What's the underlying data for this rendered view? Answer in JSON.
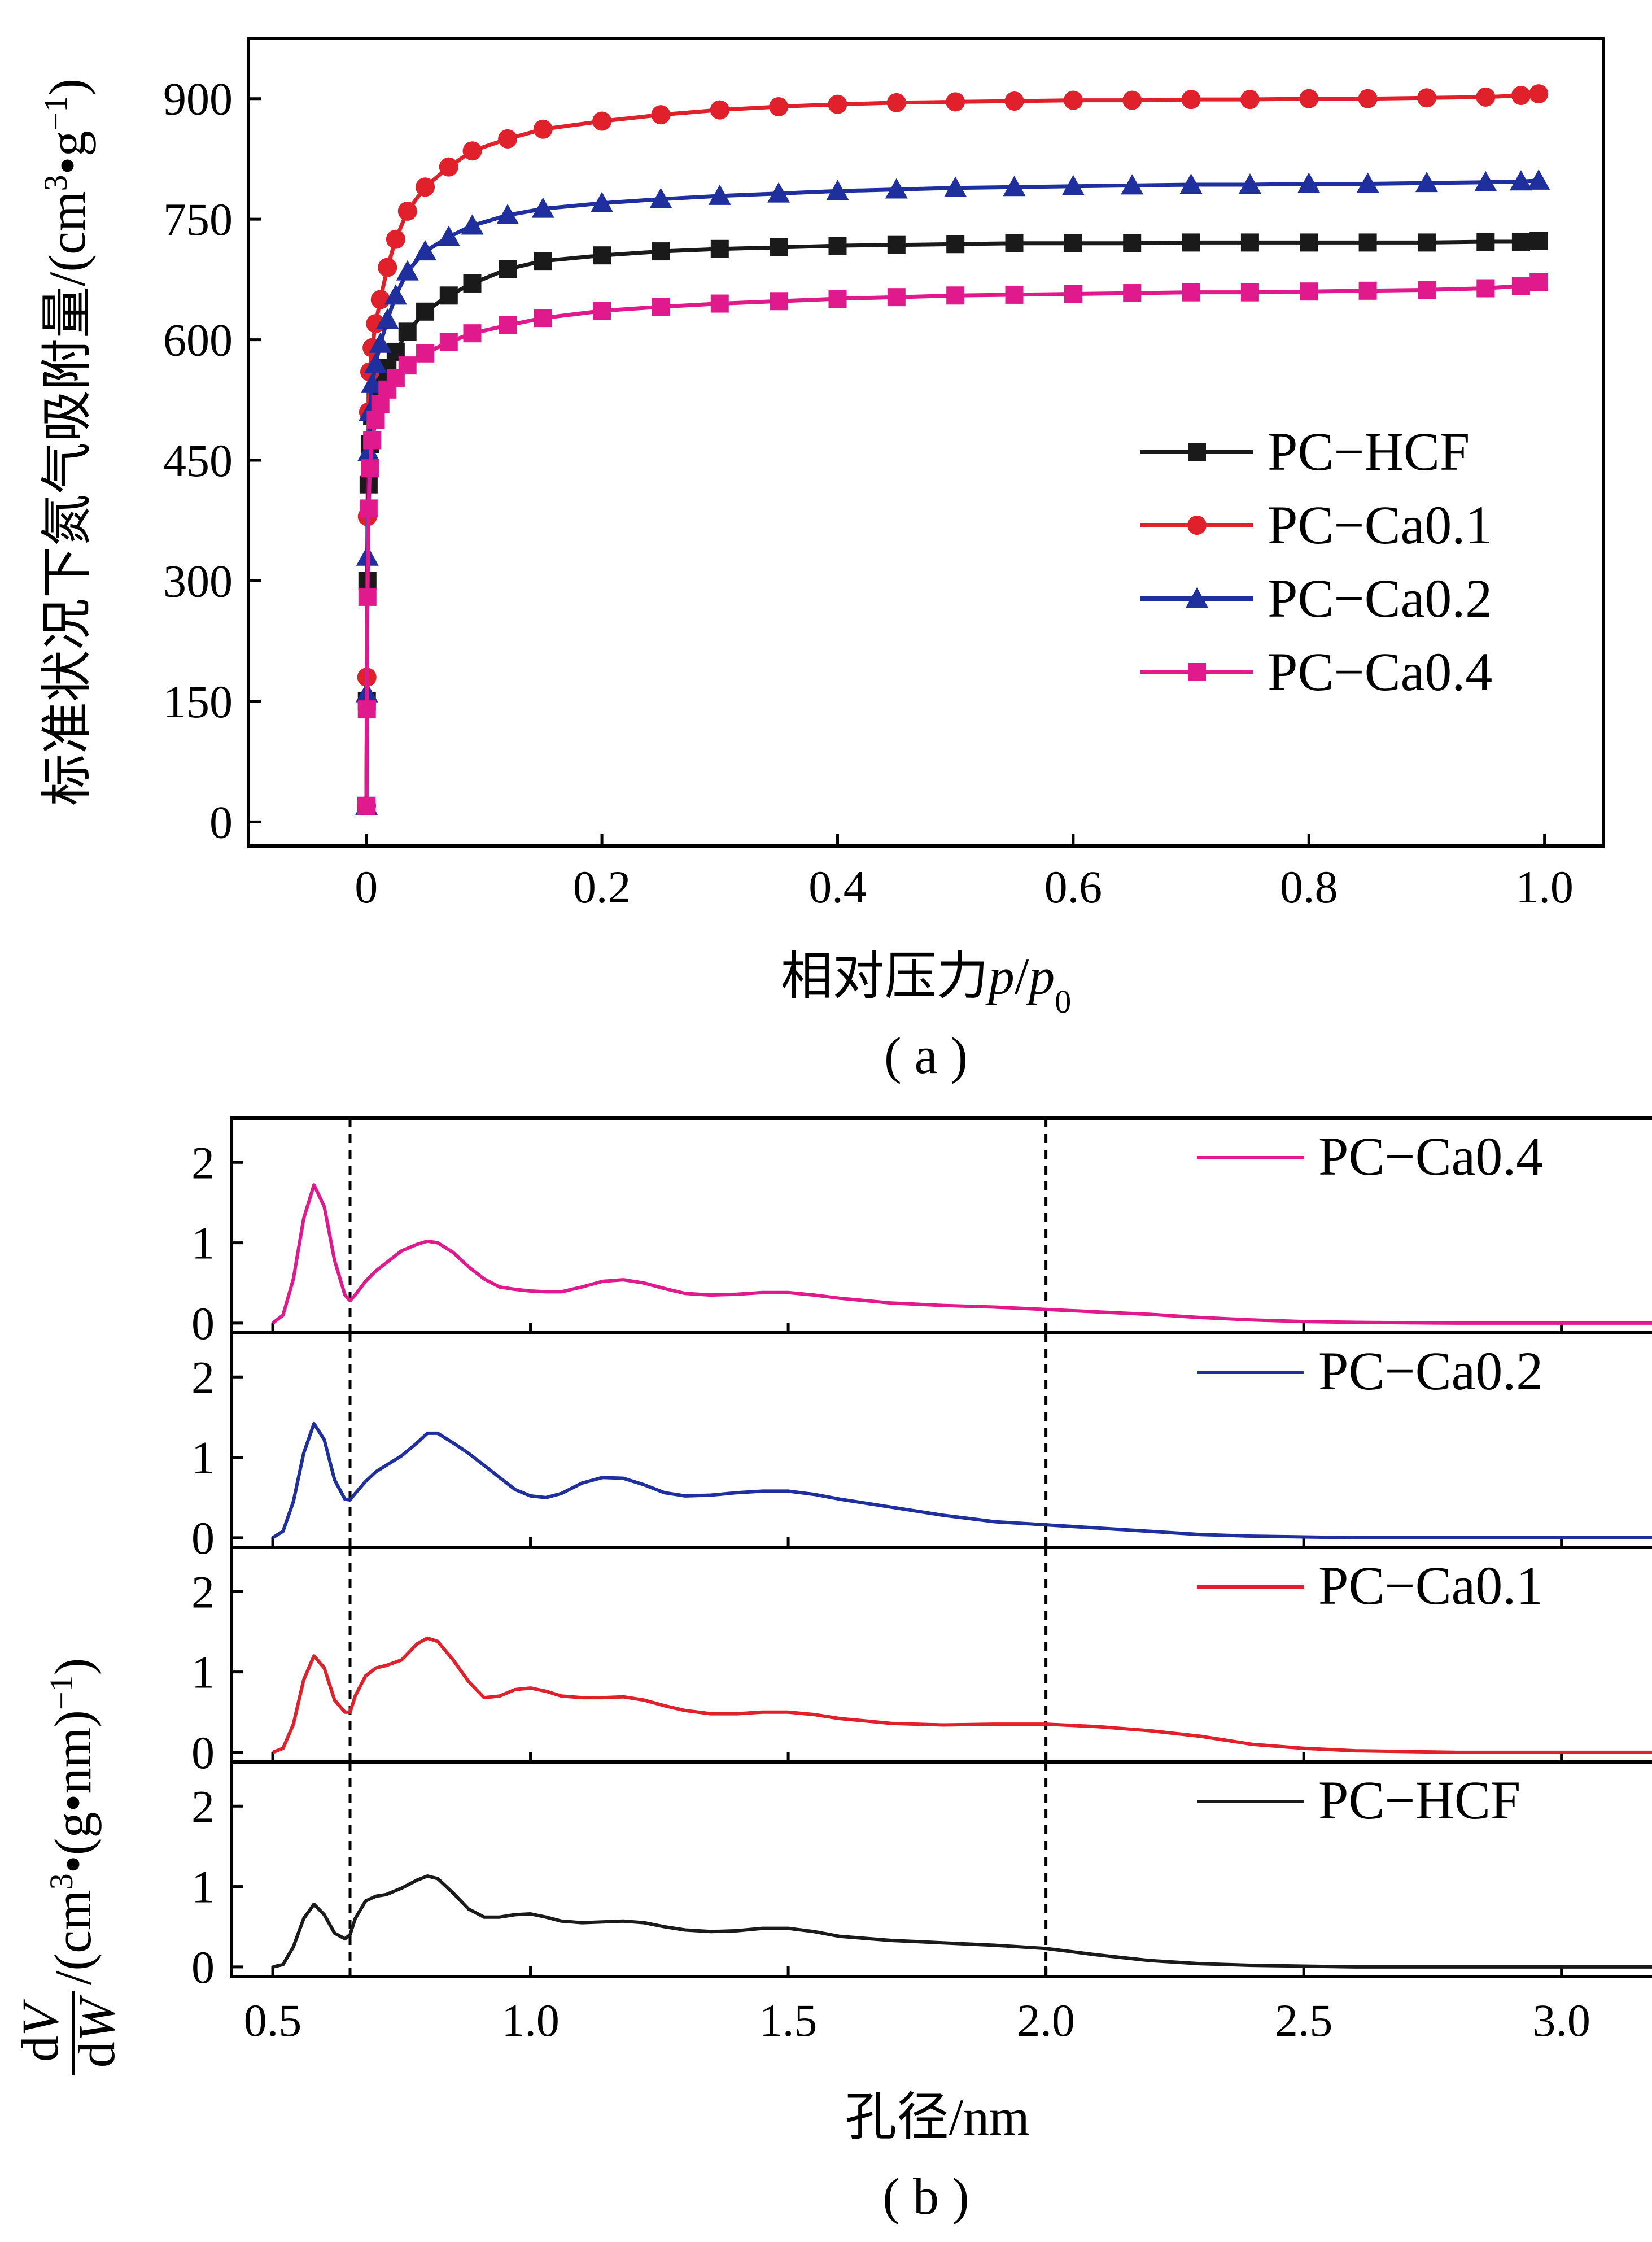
{
  "figure": {
    "caption_a": "( a )",
    "caption_b": "( b )"
  },
  "chart_data": [
    {
      "id": "a",
      "type": "line",
      "xlabel_text": "相对压力",
      "xlabel_p": "p",
      "xlabel_slash": "/",
      "xlabel_p0": "p",
      "xlabel_sub": "0",
      "ylabel_text": "标准状况下氮气吸附量/(cm",
      "ylabel_sup1": "3",
      "ylabel_mid": "•g",
      "ylabel_sup2": "−1",
      "ylabel_end": ")",
      "xlim": [
        -0.1,
        1.05
      ],
      "ylim": [
        -30,
        975
      ],
      "xticks": [
        0,
        0.2,
        0.4,
        0.6,
        0.8,
        1.0
      ],
      "xtick_labels": [
        "0",
        "0.2",
        "0.4",
        "0.6",
        "0.8",
        "1.0"
      ],
      "yticks": [
        0,
        150,
        300,
        450,
        600,
        750,
        900
      ],
      "ytick_labels": [
        "0",
        "150",
        "300",
        "450",
        "600",
        "750",
        "900"
      ],
      "legend_position": "center-right",
      "x": [
        0.0002,
        0.0005,
        0.001,
        0.002,
        0.003,
        0.005,
        0.008,
        0.012,
        0.018,
        0.025,
        0.035,
        0.05,
        0.07,
        0.09,
        0.12,
        0.15,
        0.2,
        0.25,
        0.3,
        0.35,
        0.4,
        0.45,
        0.5,
        0.55,
        0.6,
        0.65,
        0.7,
        0.75,
        0.8,
        0.85,
        0.9,
        0.95,
        0.98,
        0.995
      ],
      "series": [
        {
          "name": "PC−HCF",
          "color": "#1a1a1a",
          "marker": "square",
          "values": [
            20,
            150,
            300,
            420,
            470,
            505,
            525,
            545,
            565,
            585,
            610,
            635,
            655,
            670,
            688,
            698,
            705,
            710,
            713,
            715,
            717,
            718,
            719,
            720,
            720,
            720,
            721,
            721,
            721,
            721,
            721,
            722,
            722,
            723
          ]
        },
        {
          "name": "PC−Ca0.1",
          "color": "#e0202a",
          "marker": "circle",
          "values": [
            20,
            180,
            380,
            510,
            560,
            590,
            620,
            650,
            690,
            725,
            760,
            790,
            815,
            835,
            850,
            862,
            872,
            880,
            886,
            890,
            893,
            895,
            896,
            897,
            898,
            898,
            899,
            899,
            900,
            900,
            901,
            902,
            904,
            906
          ]
        },
        {
          "name": "PC−Ca0.2",
          "color": "#1f2f9e",
          "marker": "triangle",
          "values": [
            20,
            160,
            330,
            460,
            510,
            545,
            570,
            595,
            625,
            655,
            685,
            710,
            728,
            742,
            755,
            763,
            770,
            775,
            779,
            782,
            785,
            787,
            789,
            790,
            791,
            792,
            793,
            793,
            794,
            794,
            795,
            796,
            797,
            798
          ]
        },
        {
          "name": "PC−Ca0.4",
          "color": "#e0198c",
          "marker": "square",
          "values": [
            20,
            140,
            280,
            390,
            440,
            475,
            500,
            520,
            538,
            552,
            568,
            583,
            597,
            608,
            618,
            627,
            636,
            641,
            645,
            648,
            651,
            653,
            655,
            656,
            657,
            658,
            659,
            659,
            660,
            661,
            662,
            664,
            667,
            672
          ]
        }
      ]
    },
    {
      "id": "b",
      "type": "line",
      "xlabel": "孔径/nm",
      "ylabel_num_d": "d",
      "ylabel_num_v": "V",
      "ylabel_den_d": "d",
      "ylabel_den_w": "W",
      "ylabel_rest_a": "/(cm",
      "ylabel_rest_sup": "3",
      "ylabel_rest_b": "•(g•nm)",
      "ylabel_rest_sup2": "−1",
      "ylabel_rest_c": ")",
      "xlim": [
        0.42,
        3.18
      ],
      "ylim": [
        -0.12,
        2.55
      ],
      "xticks": [
        0.5,
        1.0,
        1.5,
        2.0,
        2.5,
        3.0
      ],
      "xtick_labels": [
        "0.5",
        "1.0",
        "1.5",
        "2.0",
        "2.5",
        "3.0"
      ],
      "yticks": [
        0,
        1,
        2
      ],
      "ytick_labels": [
        "0",
        "1",
        "2"
      ],
      "reference_lines_x": [
        0.65,
        2.0
      ],
      "x": [
        0.5,
        0.52,
        0.54,
        0.56,
        0.58,
        0.6,
        0.62,
        0.64,
        0.65,
        0.66,
        0.68,
        0.7,
        0.72,
        0.75,
        0.78,
        0.8,
        0.82,
        0.85,
        0.88,
        0.91,
        0.94,
        0.97,
        1.0,
        1.03,
        1.06,
        1.1,
        1.14,
        1.18,
        1.22,
        1.26,
        1.3,
        1.35,
        1.4,
        1.45,
        1.5,
        1.55,
        1.6,
        1.7,
        1.8,
        1.9,
        2.0,
        2.1,
        2.2,
        2.3,
        2.4,
        2.5,
        2.6,
        2.8,
        3.0,
        3.2
      ],
      "series": [
        {
          "name": "PC−Ca0.4",
          "color": "#e0198c",
          "values": [
            0.0,
            0.1,
            0.55,
            1.3,
            1.72,
            1.45,
            0.78,
            0.35,
            0.28,
            0.35,
            0.52,
            0.65,
            0.75,
            0.9,
            0.98,
            1.02,
            1.0,
            0.88,
            0.7,
            0.55,
            0.45,
            0.42,
            0.4,
            0.39,
            0.39,
            0.45,
            0.52,
            0.54,
            0.5,
            0.43,
            0.37,
            0.35,
            0.36,
            0.38,
            0.38,
            0.35,
            0.31,
            0.25,
            0.22,
            0.2,
            0.17,
            0.14,
            0.11,
            0.07,
            0.04,
            0.02,
            0.01,
            0.0,
            0.0,
            0.0
          ]
        },
        {
          "name": "PC−Ca0.2",
          "color": "#1f2f9e",
          "values": [
            0.0,
            0.08,
            0.45,
            1.05,
            1.42,
            1.22,
            0.72,
            0.48,
            0.47,
            0.55,
            0.7,
            0.82,
            0.9,
            1.02,
            1.18,
            1.3,
            1.3,
            1.18,
            1.05,
            0.9,
            0.75,
            0.6,
            0.52,
            0.5,
            0.55,
            0.68,
            0.75,
            0.74,
            0.66,
            0.56,
            0.52,
            0.53,
            0.56,
            0.58,
            0.58,
            0.54,
            0.48,
            0.38,
            0.28,
            0.2,
            0.16,
            0.12,
            0.08,
            0.04,
            0.02,
            0.01,
            0.0,
            0.0,
            0.0,
            0.0
          ]
        },
        {
          "name": "PC−Ca0.1",
          "color": "#e0202a",
          "values": [
            0.0,
            0.05,
            0.35,
            0.9,
            1.2,
            1.05,
            0.65,
            0.5,
            0.5,
            0.7,
            0.95,
            1.05,
            1.08,
            1.15,
            1.35,
            1.42,
            1.38,
            1.15,
            0.88,
            0.68,
            0.7,
            0.78,
            0.8,
            0.76,
            0.7,
            0.68,
            0.68,
            0.69,
            0.65,
            0.58,
            0.52,
            0.48,
            0.48,
            0.5,
            0.5,
            0.47,
            0.42,
            0.36,
            0.34,
            0.35,
            0.35,
            0.32,
            0.27,
            0.2,
            0.1,
            0.05,
            0.02,
            0.0,
            0.0,
            0.0
          ]
        },
        {
          "name": "PC−HCF",
          "color": "#1a1a1a",
          "values": [
            0.0,
            0.03,
            0.25,
            0.6,
            0.78,
            0.65,
            0.42,
            0.35,
            0.4,
            0.6,
            0.82,
            0.88,
            0.9,
            0.98,
            1.08,
            1.13,
            1.1,
            0.92,
            0.72,
            0.62,
            0.62,
            0.65,
            0.66,
            0.62,
            0.57,
            0.55,
            0.56,
            0.57,
            0.55,
            0.5,
            0.46,
            0.44,
            0.45,
            0.48,
            0.48,
            0.44,
            0.38,
            0.33,
            0.3,
            0.27,
            0.23,
            0.15,
            0.08,
            0.04,
            0.02,
            0.01,
            0.0,
            0.0,
            0.0,
            0.0
          ]
        }
      ]
    }
  ]
}
